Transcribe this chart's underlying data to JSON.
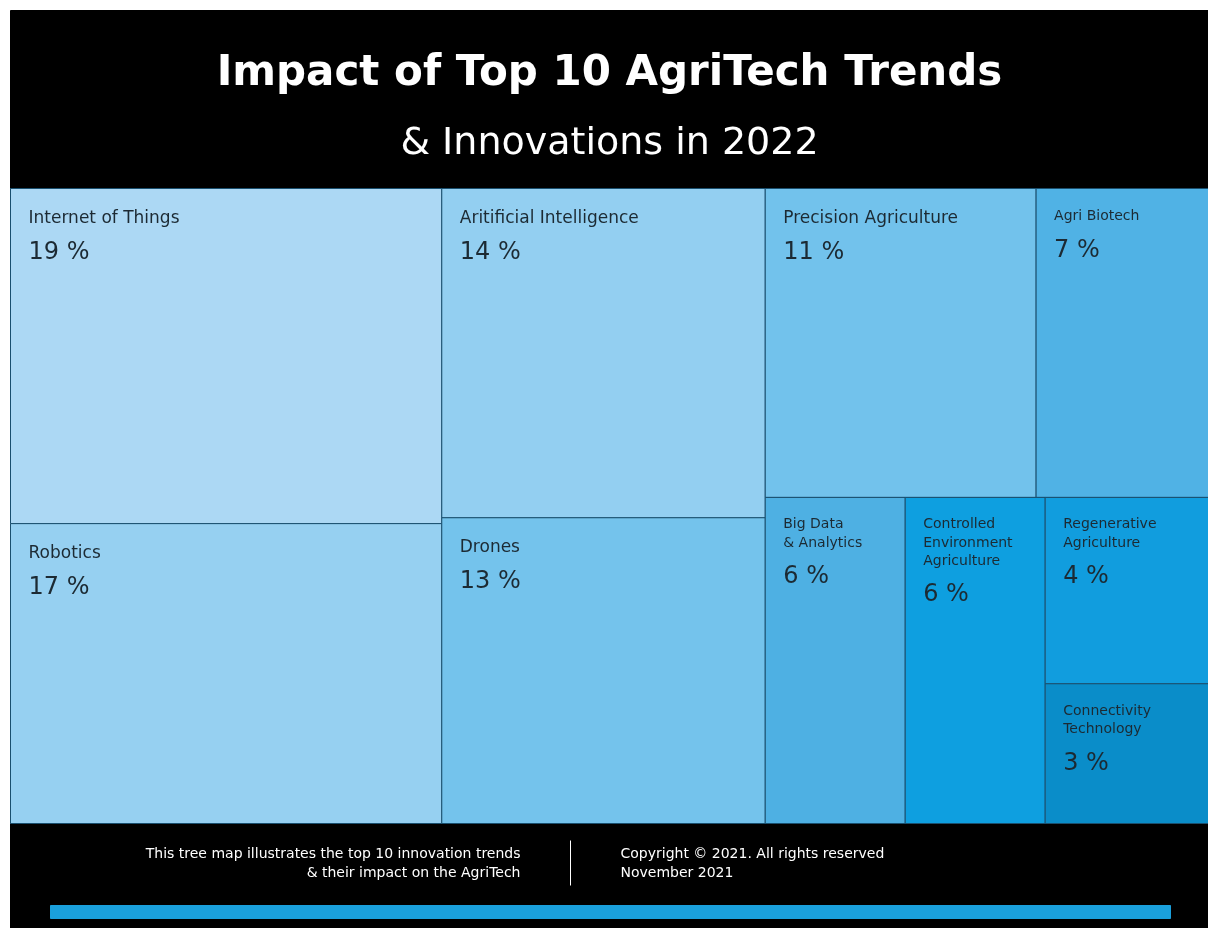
{
  "chart_data": {
    "type": "other",
    "title": "Impact of Top 10 AgriTech Trends",
    "subtitle": "& Innovations in 2022",
    "categories": [
      "Internet of Things",
      "Robotics",
      "Aritificial Intelligence",
      "Drones",
      "Precision Agriculture",
      "Agri Biotech",
      "Big Data\n& Analytics",
      "Controlled\nEnvironment\nAgriculture",
      "Regenerative\nAgriculture",
      "Connectivity\nTechnology"
    ],
    "values": [
      19,
      17,
      14,
      13,
      11,
      7,
      6,
      6,
      4,
      3
    ],
    "value_labels": [
      "19 %",
      "17 %",
      "14 %",
      "13 %",
      "11 %",
      "7 %",
      "6 %",
      "6 %",
      "4 %",
      "3 %"
    ],
    "colors": [
      "#acd8f4",
      "#96d0f1",
      "#93cff1",
      "#74c3ec",
      "#72c2ec",
      "#50b2e5",
      "#4eb0e3",
      "#0e9fe0",
      "#119dde",
      "#0a8dc9"
    ],
    "annotations": [
      "This tree map illustrates the top 10 innovation trends\n& their impact on the AgriTech",
      "Copyright © 2021. All rights reserved\nNovember 2021"
    ]
  }
}
